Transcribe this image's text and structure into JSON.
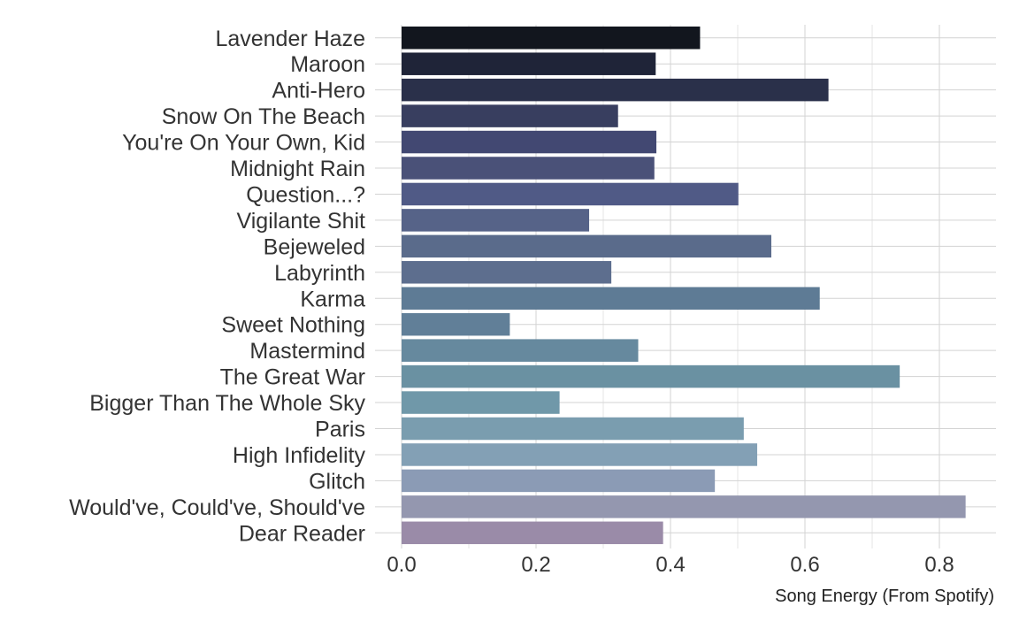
{
  "chart_data": {
    "type": "bar",
    "orientation": "horizontal",
    "categories": [
      "Lavender Haze",
      "Maroon",
      "Anti-Hero",
      "Snow On The Beach",
      "You're On Your Own, Kid",
      "Midnight Rain",
      "Question...?",
      "Vigilante Shit",
      "Bejeweled",
      "Labyrinth",
      "Karma",
      "Sweet Nothing",
      "Mastermind",
      "The Great War",
      "Bigger Than The Whole Sky",
      "Paris",
      "High Infidelity",
      "Glitch",
      "Would've, Could've, Should've",
      "Dear Reader"
    ],
    "values": [
      0.444,
      0.378,
      0.635,
      0.322,
      0.379,
      0.376,
      0.501,
      0.279,
      0.55,
      0.312,
      0.622,
      0.161,
      0.352,
      0.741,
      0.235,
      0.509,
      0.529,
      0.466,
      0.839,
      0.389
    ],
    "colors": [
      "#12161e",
      "#1f2438",
      "#2a304a",
      "#383e5f",
      "#424872",
      "#4a5178",
      "#505a86",
      "#566388",
      "#5a6b8b",
      "#5d6e8e",
      "#5e7b95",
      "#617f98",
      "#66899e",
      "#6a91a2",
      "#7098a9",
      "#7a9daf",
      "#83a0b5",
      "#8b9bb5",
      "#9497af",
      "#9a8ba8"
    ],
    "xlabel": "Song Energy (From Spotify)",
    "ylabel": "",
    "title": "",
    "xlim": [
      0,
      0.88
    ],
    "xticks": [
      0.0,
      0.2,
      0.4,
      0.6,
      0.8
    ],
    "xtick_labels": [
      "0.0",
      "0.2",
      "0.4",
      "0.6",
      "0.8"
    ],
    "grid": true
  }
}
